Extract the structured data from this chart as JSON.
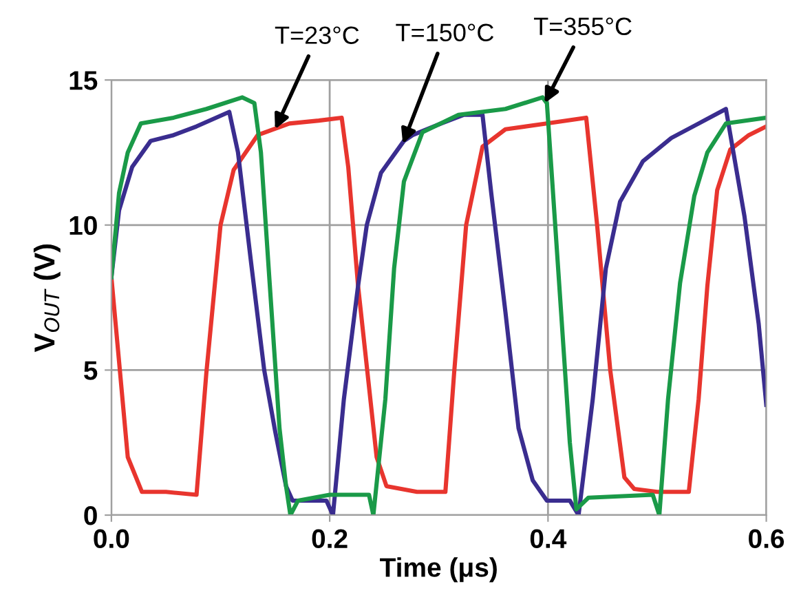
{
  "chart_data": {
    "type": "line",
    "xlabel": "Time (μs)",
    "ylabel": "V$_{OUT}$ (V)",
    "xlim": [
      0,
      0.6
    ],
    "ylim": [
      0,
      15
    ],
    "xticks": [
      {
        "value": 0,
        "label": "0.0"
      },
      0.2,
      0.4,
      0.6
    ],
    "yticks": [
      0,
      5,
      10,
      15
    ],
    "grid": true,
    "marker": "none",
    "line_style": "solid",
    "series": [
      {
        "color": "#e8352e",
        "x": [
          0,
          0.015,
          0.028,
          0.05,
          0.078,
          0.087,
          0.1,
          0.112,
          0.134,
          0.163,
          0.19,
          0.211,
          0.217,
          0.226,
          0.243,
          0.252,
          0.28,
          0.306,
          0.314,
          0.325,
          0.34,
          0.361,
          0.399,
          0.435,
          0.445,
          0.457,
          0.47,
          0.479,
          0.5,
          0.529,
          0.538,
          0.546,
          0.555,
          0.567,
          0.584,
          0.6
        ],
        "values": [
          8.2,
          2.0,
          0.8,
          0.8,
          0.7,
          4.9,
          10.0,
          11.9,
          13.1,
          13.5,
          13.6,
          13.7,
          12.0,
          7.9,
          2.0,
          1.0,
          0.8,
          0.8,
          4.9,
          10.0,
          12.7,
          13.3,
          13.5,
          13.7,
          10.0,
          5.0,
          1.3,
          0.9,
          0.8,
          0.8,
          4.0,
          7.9,
          11.2,
          12.6,
          13.1,
          13.4
        ]
      },
      {
        "color": "#3a2d8f",
        "x": [
          0,
          0.007,
          0.019,
          0.036,
          0.057,
          0.078,
          0.108,
          0.116,
          0.128,
          0.14,
          0.15,
          0.16,
          0.166,
          0.197,
          0.203,
          0.213,
          0.226,
          0.234,
          0.247,
          0.268,
          0.276,
          0.302,
          0.323,
          0.34,
          0.348,
          0.361,
          0.373,
          0.386,
          0.399,
          0.42,
          0.428,
          0.441,
          0.453,
          0.466,
          0.487,
          0.513,
          0.538,
          0.563,
          0.58,
          0.593,
          0.6
        ],
        "values": [
          8.2,
          10.5,
          12.0,
          12.9,
          13.1,
          13.4,
          13.9,
          12.5,
          8.7,
          5.0,
          2.9,
          1.0,
          0.5,
          0.5,
          0.0,
          4.0,
          7.9,
          10.0,
          11.8,
          12.9,
          13.1,
          13.5,
          13.8,
          13.8,
          11.1,
          7.0,
          3.0,
          1.2,
          0.5,
          0.5,
          0.0,
          4.0,
          8.5,
          10.8,
          12.2,
          13.0,
          13.5,
          14.0,
          10.3,
          6.6,
          3.8
        ]
      },
      {
        "color": "#1a9a48",
        "x": [
          0,
          0.007,
          0.015,
          0.027,
          0.057,
          0.087,
          0.12,
          0.131,
          0.137,
          0.145,
          0.154,
          0.16,
          0.164,
          0.171,
          0.2,
          0.236,
          0.24,
          0.251,
          0.259,
          0.268,
          0.281,
          0.285,
          0.318,
          0.361,
          0.395,
          0.399,
          0.403,
          0.412,
          0.42,
          0.426,
          0.437,
          0.496,
          0.502,
          0.51,
          0.521,
          0.534,
          0.546,
          0.563,
          0.6
        ],
        "values": [
          8.2,
          11.1,
          12.5,
          13.5,
          13.7,
          14.0,
          14.4,
          14.2,
          12.5,
          8.0,
          3.0,
          1.0,
          0.0,
          0.5,
          0.7,
          0.7,
          0.0,
          4.0,
          8.5,
          11.5,
          12.8,
          13.2,
          13.8,
          14.0,
          14.4,
          14.2,
          12.0,
          7.0,
          2.5,
          0.2,
          0.6,
          0.7,
          0.0,
          4.0,
          8.0,
          11.0,
          12.5,
          13.5,
          13.7
        ]
      }
    ],
    "annotations": [
      {
        "text": "T=23°C",
        "x": 0.15,
        "y": 13.3
      },
      {
        "text": "T=150°C",
        "x": 0.267,
        "y": 12.8
      },
      {
        "text": "T=355°C",
        "x": 0.397,
        "y": 14.2
      }
    ]
  }
}
